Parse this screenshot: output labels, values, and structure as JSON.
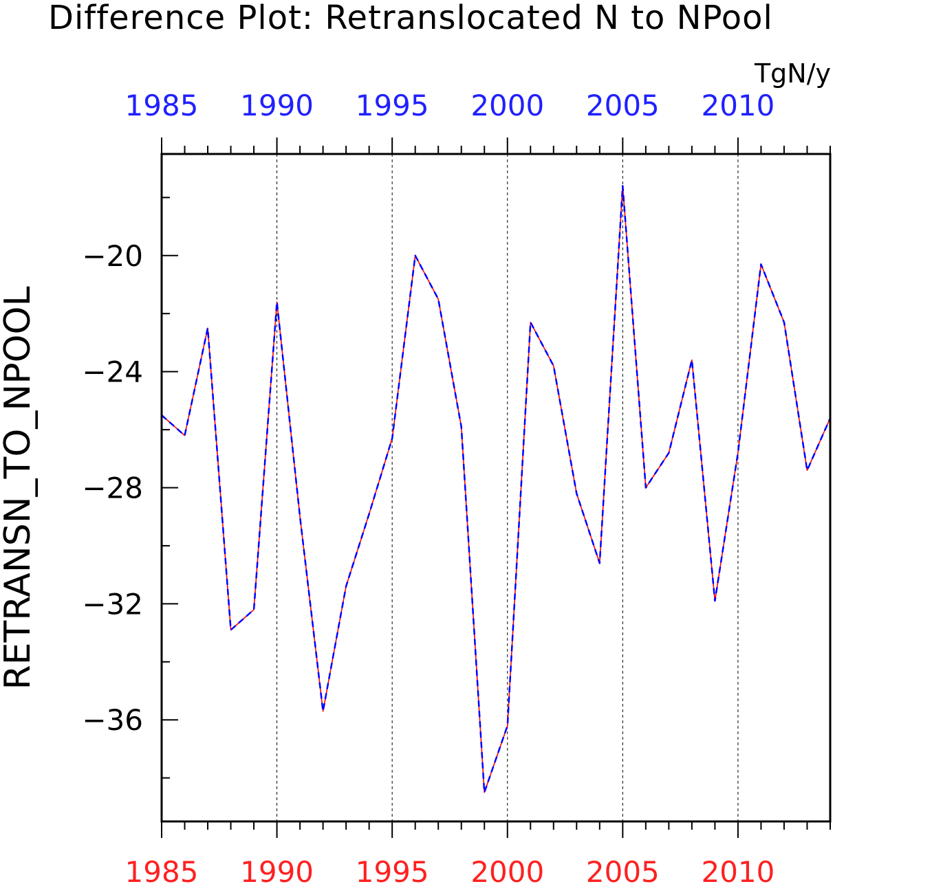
{
  "chart_data": {
    "type": "line",
    "title": "Difference Plot: Retranslocated N to NPool",
    "units": "TgN/y",
    "ylabel": "RETRANSN_TO_NPOOL",
    "xlim": [
      1985,
      2014
    ],
    "ylim": [
      -39.5,
      -16.5
    ],
    "xticks": [
      1985,
      1990,
      1995,
      2000,
      2005,
      2010
    ],
    "xtick_labels": [
      "1985",
      "1990",
      "1995",
      "2000",
      "2005",
      "2010"
    ],
    "yticks": [
      -20,
      -24,
      -28,
      -32,
      -36
    ],
    "ytick_labels": [
      "−20",
      "−24",
      "−28",
      "−32",
      "−36"
    ],
    "grid": "vertical dashed at major x ticks",
    "top_axis_color": "#2020ff",
    "bottom_axis_color": "#ff2020",
    "x": [
      1985,
      1986,
      1987,
      1988,
      1989,
      1990,
      1991,
      1992,
      1993,
      1994,
      1995,
      1996,
      1997,
      1998,
      1999,
      2000,
      2001,
      2002,
      2003,
      2004,
      2005,
      2006,
      2007,
      2008,
      2009,
      2010,
      2011,
      2012,
      2013,
      2014
    ],
    "series": [
      {
        "color": "#ff0000",
        "style": "solid",
        "values": [
          -25.5,
          -26.2,
          -22.5,
          -32.9,
          -32.2,
          -21.6,
          -29.0,
          -35.7,
          -31.4,
          -28.9,
          -26.3,
          -20.0,
          -21.5,
          -25.9,
          -38.5,
          -36.2,
          -22.3,
          -23.8,
          -28.2,
          -30.6,
          -17.6,
          -28.0,
          -26.8,
          -23.6,
          -31.9,
          -26.8,
          -20.3,
          -22.3,
          -27.4,
          -25.6
        ]
      },
      {
        "color": "#0000ff",
        "style": "dashed",
        "values": [
          -25.5,
          -26.2,
          -22.5,
          -32.9,
          -32.2,
          -21.6,
          -29.0,
          -35.7,
          -31.4,
          -28.9,
          -26.3,
          -20.0,
          -21.5,
          -25.9,
          -38.5,
          -36.2,
          -22.3,
          -23.8,
          -28.2,
          -30.6,
          -17.6,
          -28.0,
          -26.8,
          -23.6,
          -31.9,
          -26.8,
          -20.3,
          -22.3,
          -27.4,
          -25.6
        ]
      }
    ]
  }
}
